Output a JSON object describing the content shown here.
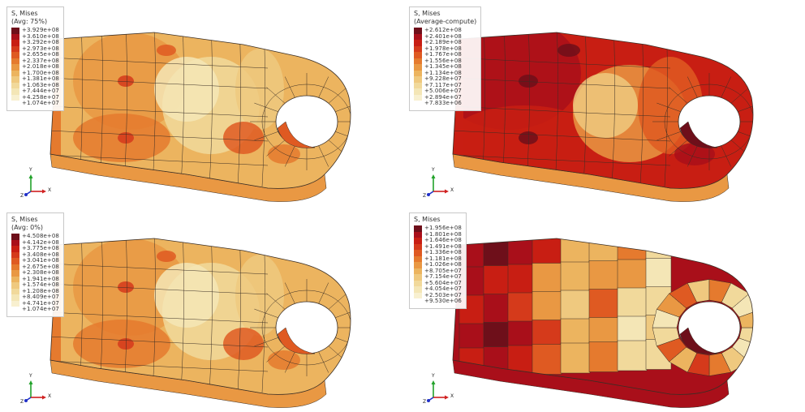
{
  "palette": [
    "#6e0f1a",
    "#a90f1a",
    "#c81e13",
    "#d53a1b",
    "#df5a22",
    "#e57a2e",
    "#e99843",
    "#ecb45f",
    "#efc97f",
    "#f1d99b",
    "#f4e6b6",
    "#f8f0d0"
  ],
  "mesh_stroke": "#3a2e25",
  "panels": [
    {
      "title": "S, Mises",
      "subtitle": "(Avg: 75%)",
      "values": [
        "+3.929e+08",
        "+3.610e+08",
        "+3.292e+08",
        "+2.973e+08",
        "+2.655e+08",
        "+2.337e+08",
        "+2.018e+08",
        "+1.700e+08",
        "+1.381e+08",
        "+1.063e+08",
        "+7.444e+07",
        "+4.258e+07",
        "+1.074e+07"
      ],
      "style": "smooth"
    },
    {
      "title": "S, Mises",
      "subtitle": "(Average-compute)",
      "values": [
        "+2.612e+08",
        "+2.401e+08",
        "+2.189e+08",
        "+1.978e+08",
        "+1.767e+08",
        "+1.556e+08",
        "+1.345e+08",
        "+1.134e+08",
        "+9.228e+07",
        "+7.117e+07",
        "+5.006e+07",
        "+2.894e+07",
        "+7.833e+06"
      ],
      "style": "hot"
    },
    {
      "title": "S, Mises",
      "subtitle": "(Avg: 0%)",
      "values": [
        "+4.508e+08",
        "+4.142e+08",
        "+3.775e+08",
        "+3.408e+08",
        "+3.041e+08",
        "+2.675e+08",
        "+2.308e+08",
        "+1.941e+08",
        "+1.574e+08",
        "+1.208e+08",
        "+8.409e+07",
        "+4.741e+07",
        "+1.074e+07"
      ],
      "style": "smooth"
    },
    {
      "title": "S, Mises",
      "subtitle": "",
      "values": [
        "+1.956e+08",
        "+1.801e+08",
        "+1.646e+08",
        "+1.491e+08",
        "+1.336e+08",
        "+1.181e+08",
        "+1.026e+08",
        "+8.705e+07",
        "+7.154e+07",
        "+5.604e+07",
        "+4.054e+07",
        "+2.503e+07",
        "+9.530e+06"
      ],
      "style": "element"
    }
  ],
  "triad": {
    "y": "Y",
    "x": "X",
    "z": "Z"
  }
}
